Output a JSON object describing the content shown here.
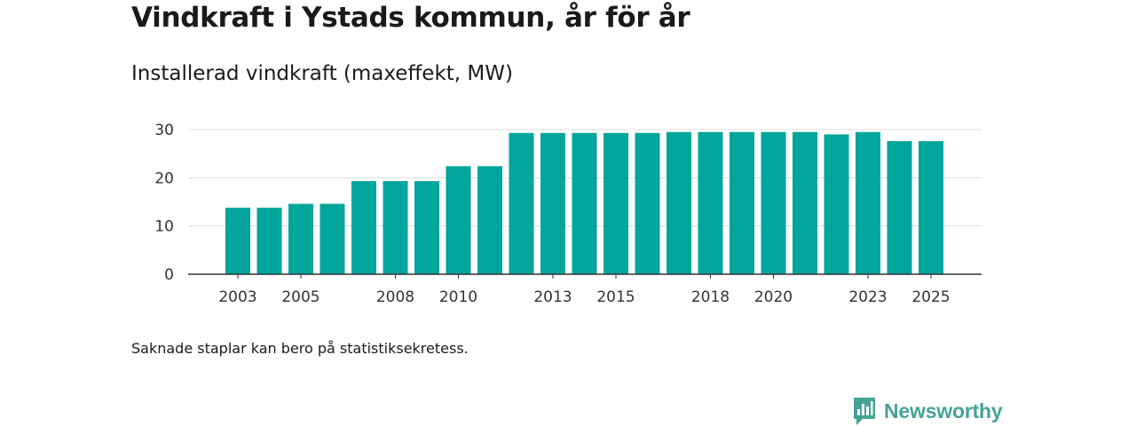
{
  "header": {
    "title": "Vindkraft i Ystads kommun, år för år",
    "subtitle": "Installerad vindkraft (maxeffekt, MW)"
  },
  "footnote": "Saknade staplar kan bero på statistiksekretess.",
  "brand": {
    "name": "Newsworthy",
    "icon": "newsworthy-logo-icon",
    "color": "#46a296"
  },
  "chart_data": {
    "type": "bar",
    "title": "Installerad vindkraft (maxeffekt, MW)",
    "xlabel": "",
    "ylabel": "",
    "ylim": [
      0,
      30
    ],
    "yticks": [
      0,
      10,
      20,
      30
    ],
    "xtick_labels": [
      "2003",
      "2005",
      "2008",
      "2010",
      "2013",
      "2015",
      "2018",
      "2020",
      "2023",
      "2025"
    ],
    "categories": [
      "2003",
      "2004",
      "2005",
      "2006",
      "2007",
      "2008",
      "2009",
      "2010",
      "2011",
      "2012",
      "2013",
      "2014",
      "2015",
      "2016",
      "2017",
      "2018",
      "2019",
      "2020",
      "2021",
      "2022",
      "2023",
      "2024",
      "2025"
    ],
    "values": [
      13.8,
      13.8,
      14.6,
      14.6,
      19.3,
      19.3,
      19.3,
      22.4,
      22.4,
      29.3,
      29.3,
      29.3,
      29.3,
      29.3,
      29.5,
      29.5,
      29.5,
      29.5,
      29.5,
      29.0,
      29.5,
      27.6,
      27.6
    ],
    "color": "#00a59b",
    "grid": true,
    "legend": "none"
  }
}
